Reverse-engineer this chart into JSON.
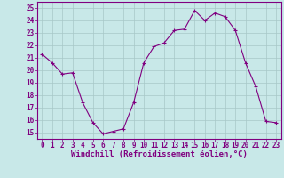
{
  "x": [
    0,
    1,
    2,
    3,
    4,
    5,
    6,
    7,
    8,
    9,
    10,
    11,
    12,
    13,
    14,
    15,
    16,
    17,
    18,
    19,
    20,
    21,
    22,
    23
  ],
  "y": [
    21.3,
    20.6,
    19.7,
    19.8,
    17.4,
    15.8,
    14.9,
    15.1,
    15.3,
    17.4,
    20.6,
    21.9,
    22.2,
    23.2,
    23.3,
    24.8,
    24.0,
    24.6,
    24.3,
    23.2,
    20.6,
    18.7,
    15.9,
    15.8
  ],
  "line_color": "#800080",
  "marker_color": "#800080",
  "bg_color": "#c8e8e8",
  "grid_color": "#a8c8c8",
  "xlabel": "Windchill (Refroidissement éolien,°C)",
  "xlim": [
    -0.5,
    23.5
  ],
  "ylim": [
    14.5,
    25.5
  ],
  "yticks": [
    15,
    16,
    17,
    18,
    19,
    20,
    21,
    22,
    23,
    24,
    25
  ],
  "xticks": [
    0,
    1,
    2,
    3,
    4,
    5,
    6,
    7,
    8,
    9,
    10,
    11,
    12,
    13,
    14,
    15,
    16,
    17,
    18,
    19,
    20,
    21,
    22,
    23
  ],
  "tick_fontsize": 5.5,
  "xlabel_fontsize": 6.5,
  "plot_linewidth": 0.8,
  "marker_size": 3
}
